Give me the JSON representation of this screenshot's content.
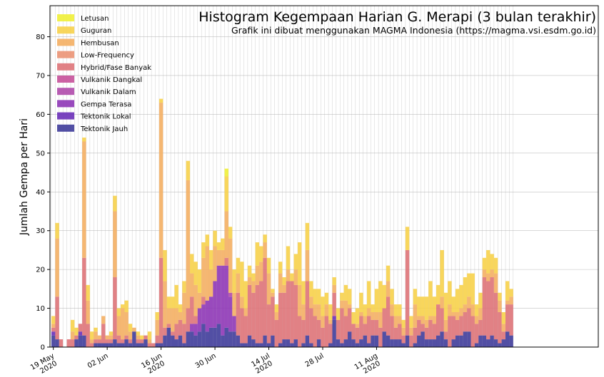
{
  "chart_data": {
    "type": "bar",
    "stacked": true,
    "title": "Histogram Kegempaan Harian G. Merapi (3 bulan terakhir)",
    "subtitle": "Grafik ini dibuat menggunakan MAGMA Indonesia (https://magma.vsi.esdm.go.id)",
    "xlabel": "",
    "ylabel": "Jumlah Gempa per Hari",
    "ylim": [
      0,
      88
    ],
    "yticks": [
      0,
      10,
      20,
      30,
      40,
      50,
      60,
      70,
      80
    ],
    "start_date": "2020-05-19",
    "xticks": [
      {
        "date": "2020-05-19",
        "line1": "19 May",
        "line2": "2020"
      },
      {
        "date": "2020-06-02",
        "line1": "02 Jun",
        "line2": ""
      },
      {
        "date": "2020-06-16",
        "line1": "16 Jun",
        "line2": "2020"
      },
      {
        "date": "2020-06-30",
        "line1": "30 Jun",
        "line2": ""
      },
      {
        "date": "2020-07-14",
        "line1": "14 Jul",
        "line2": "2020"
      },
      {
        "date": "2020-07-28",
        "line1": "28 Jul",
        "line2": ""
      },
      {
        "date": "2020-08-11",
        "line1": "11 Aug",
        "line2": "2020"
      }
    ],
    "grid": true,
    "legend_position": "top-left",
    "series": [
      {
        "name": "Tektonik Jauh",
        "color": "#3f3c9a",
        "values": [
          3,
          2,
          0,
          0,
          0,
          0,
          2,
          3,
          3,
          0,
          0,
          1,
          1,
          1,
          1,
          1,
          2,
          1,
          1,
          2,
          1,
          4,
          1,
          1,
          2,
          0,
          0,
          1,
          1,
          3,
          5,
          3,
          2,
          3,
          1,
          4,
          4,
          3,
          4,
          6,
          4,
          5,
          5,
          6,
          3,
          5,
          4,
          4,
          3,
          1,
          1,
          3,
          2,
          1,
          1,
          3,
          1,
          3,
          0,
          1,
          2,
          2,
          1,
          2,
          0,
          1,
          3,
          1,
          0,
          2,
          0,
          0,
          1,
          7,
          2,
          1,
          2,
          4,
          2,
          1,
          2,
          3,
          1,
          3,
          3,
          0,
          4,
          3,
          2,
          2,
          2,
          1,
          3,
          0,
          1,
          3,
          4,
          2,
          2,
          2,
          3,
          4,
          2,
          0,
          2,
          3,
          3,
          4,
          4,
          0,
          1,
          3,
          3,
          2,
          3,
          2,
          1,
          2,
          4,
          3
        ]
      },
      {
        "name": "Tektonik Lokal",
        "color": "#6a2fb8",
        "values": [
          1,
          0,
          0,
          0,
          0,
          0,
          0,
          1,
          0,
          0,
          0,
          0,
          0,
          0,
          0,
          0,
          0,
          0,
          0,
          0,
          0,
          0,
          0,
          0,
          0,
          0,
          0,
          0,
          0,
          0,
          0,
          0,
          0,
          0,
          0,
          0,
          0,
          0,
          0,
          0,
          0,
          0,
          0,
          0,
          0,
          0,
          0,
          0,
          0,
          0,
          0,
          0,
          0,
          0,
          0,
          0,
          0,
          0,
          0,
          0,
          0,
          0,
          0,
          0,
          0,
          0,
          0,
          0,
          0,
          0,
          0,
          0,
          0,
          1,
          0,
          0,
          0,
          0,
          0,
          0,
          0,
          0,
          0,
          0,
          0,
          0,
          0,
          0,
          0,
          0,
          0,
          0,
          0,
          0,
          0,
          0,
          0,
          0,
          0,
          0,
          0,
          0,
          0,
          0,
          0,
          0,
          0,
          0,
          0,
          0,
          0,
          0,
          0,
          0,
          0,
          0,
          0,
          0,
          0,
          0
        ]
      },
      {
        "name": "Gempa Terasa",
        "color": "#8e36b6",
        "values": [
          0,
          0,
          0,
          0,
          0,
          0,
          0,
          0,
          0,
          0,
          0,
          0,
          0,
          0,
          0,
          0,
          0,
          0,
          0,
          0,
          0,
          0,
          0,
          0,
          0,
          0,
          0,
          0,
          0,
          0,
          0,
          0,
          0,
          0,
          0,
          0,
          2,
          3,
          6,
          5,
          8,
          8,
          12,
          15,
          18,
          16,
          9,
          4,
          0,
          0,
          0,
          0,
          0,
          0,
          0,
          0,
          0,
          0,
          0,
          0,
          0,
          0,
          0,
          0,
          0,
          0,
          0,
          0,
          0,
          0,
          0,
          0,
          0,
          0,
          0,
          0,
          0,
          0,
          0,
          0,
          0,
          0,
          0,
          0,
          0,
          0,
          0,
          0,
          0,
          0,
          0,
          0,
          0,
          0,
          0,
          0,
          0,
          0,
          0,
          0,
          0,
          0,
          0,
          0,
          0,
          0,
          0,
          0,
          0,
          0,
          0,
          0,
          0,
          0,
          0,
          0,
          0,
          0,
          0,
          0
        ]
      },
      {
        "name": "Vulkanik Dalam",
        "color": "#b04aab",
        "values": [
          0,
          0,
          0,
          0,
          0,
          0,
          0,
          0,
          0,
          0,
          0,
          0,
          0,
          0,
          0,
          0,
          0,
          0,
          0,
          0,
          0,
          0,
          0,
          0,
          0,
          0,
          0,
          0,
          0,
          0,
          0,
          0,
          0,
          0,
          0,
          0,
          0,
          0,
          0,
          0,
          0,
          0,
          0,
          0,
          0,
          0,
          1,
          0,
          0,
          0,
          0,
          0,
          0,
          0,
          0,
          0,
          0,
          0,
          0,
          0,
          0,
          0,
          0,
          0,
          0,
          0,
          0,
          0,
          0,
          0,
          0,
          0,
          0,
          0,
          0,
          0,
          0,
          0,
          0,
          0,
          0,
          0,
          0,
          0,
          0,
          0,
          0,
          0,
          0,
          0,
          0,
          0,
          0,
          0,
          0,
          0,
          0,
          0,
          0,
          0,
          0,
          0,
          0,
          0,
          0,
          0,
          0,
          0,
          0,
          0,
          0,
          0,
          0,
          0,
          0,
          0,
          0,
          0,
          0,
          0
        ]
      },
      {
        "name": "Vulkanik Dangkal",
        "color": "#c6519a",
        "values": [
          0,
          0,
          0,
          0,
          0,
          0,
          0,
          0,
          0,
          0,
          0,
          0,
          0,
          0,
          0,
          0,
          0,
          0,
          0,
          0,
          0,
          0,
          0,
          0,
          0,
          0,
          0,
          0,
          0,
          0,
          0,
          0,
          0,
          0,
          0,
          0,
          0,
          0,
          0,
          0,
          0,
          0,
          0,
          0,
          0,
          0,
          0,
          0,
          0,
          0,
          0,
          0,
          0,
          0,
          0,
          0,
          0,
          0,
          0,
          0,
          0,
          0,
          0,
          0,
          0,
          0,
          0,
          0,
          0,
          0,
          0,
          0,
          0,
          0,
          0,
          0,
          0,
          0,
          0,
          0,
          0,
          0,
          0,
          0,
          0,
          0,
          0,
          0,
          0,
          0,
          0,
          0,
          0,
          0,
          0,
          0,
          0,
          0,
          0,
          0,
          0,
          0,
          0,
          0,
          0,
          0,
          0,
          0,
          0,
          0,
          0,
          0,
          0,
          0,
          0,
          0,
          0,
          0,
          0,
          0
        ]
      },
      {
        "name": "Hybrid/Fase Banyak",
        "color": "#de7378",
        "values": [
          1,
          11,
          2,
          0,
          2,
          2,
          1,
          2,
          20,
          6,
          1,
          1,
          1,
          5,
          1,
          1,
          16,
          2,
          1,
          1,
          1,
          0,
          1,
          1,
          1,
          1,
          1,
          2,
          22,
          2,
          1,
          1,
          4,
          4,
          5,
          6,
          7,
          2,
          0,
          2,
          0,
          0,
          0,
          0,
          0,
          2,
          0,
          0,
          11,
          9,
          7,
          13,
          12,
          15,
          16,
          20,
          10,
          10,
          7,
          13,
          12,
          15,
          16,
          14,
          8,
          6,
          14,
          9,
          8,
          5,
          5,
          8,
          5,
          6,
          5,
          9,
          6,
          6,
          4,
          4,
          6,
          3,
          7,
          4,
          4,
          5,
          6,
          10,
          6,
          3,
          4,
          2,
          22,
          3,
          4,
          4,
          2,
          3,
          5,
          4,
          8,
          6,
          2,
          8,
          6,
          4,
          5,
          5,
          6,
          8,
          5,
          4,
          15,
          15,
          15,
          12,
          8,
          2,
          7,
          8
        ]
      },
      {
        "name": "Low-Frequency",
        "color": "#eb9374",
        "values": [
          0,
          0,
          0,
          0,
          0,
          0,
          0,
          0,
          0,
          0,
          0,
          0,
          0,
          0,
          0,
          0,
          0,
          0,
          0,
          0,
          0,
          0,
          0,
          0,
          0,
          0,
          0,
          0,
          0,
          0,
          0,
          0,
          0,
          0,
          0,
          0,
          0,
          0,
          0,
          0,
          0,
          0,
          0,
          0,
          0,
          0,
          0,
          0,
          0,
          0,
          0,
          0,
          0,
          0,
          0,
          0,
          0,
          0,
          0,
          0,
          0,
          0,
          0,
          0,
          0,
          0,
          0,
          0,
          0,
          0,
          0,
          0,
          0,
          0,
          0,
          0,
          0,
          0,
          0,
          0,
          0,
          0,
          0,
          0,
          0,
          0,
          0,
          0,
          0,
          0,
          0,
          0,
          0,
          0,
          0,
          0,
          0,
          0,
          0,
          0,
          0,
          0,
          0,
          0,
          0,
          0,
          0,
          0,
          0,
          0,
          0,
          0,
          0,
          0,
          0,
          0,
          0,
          0,
          0,
          0
        ]
      },
      {
        "name": "Hembusan",
        "color": "#f4af63",
        "values": [
          1,
          15,
          0,
          0,
          0,
          2,
          0,
          0,
          30,
          6,
          1,
          2,
          1,
          2,
          1,
          1,
          17,
          5,
          8,
          6,
          2,
          1,
          1,
          0,
          0,
          1,
          0,
          4,
          40,
          12,
          4,
          6,
          4,
          2,
          8,
          33,
          6,
          8,
          4,
          10,
          14,
          7,
          9,
          4,
          4,
          12,
          14,
          6,
          5,
          3,
          2,
          2,
          3,
          5,
          5,
          4,
          8,
          1,
          2,
          5,
          2,
          3,
          0,
          4,
          8,
          4,
          8,
          3,
          3,
          4,
          3,
          3,
          1,
          2,
          0,
          2,
          4,
          1,
          0,
          1,
          1,
          2,
          2,
          2,
          2,
          4,
          0,
          4,
          3,
          3,
          2,
          2,
          0,
          2,
          6,
          1,
          2,
          2,
          1,
          2,
          0,
          3,
          3,
          3,
          1,
          2,
          2,
          2,
          3,
          3,
          2,
          3,
          2,
          2,
          2,
          5,
          3,
          2,
          1,
          2
        ]
      },
      {
        "name": "Guguran",
        "color": "#f7d24a",
        "values": [
          2,
          4,
          0,
          0,
          0,
          3,
          2,
          0,
          1,
          4,
          2,
          1,
          0,
          0,
          0,
          1,
          4,
          2,
          1,
          3,
          2,
          0,
          1,
          1,
          0,
          2,
          0,
          2,
          1,
          8,
          3,
          3,
          6,
          2,
          3,
          5,
          5,
          6,
          6,
          4,
          3,
          5,
          4,
          2,
          3,
          9,
          3,
          6,
          4,
          9,
          7,
          3,
          2,
          6,
          4,
          2,
          4,
          1,
          2,
          3,
          2,
          6,
          2,
          4,
          11,
          6,
          7,
          4,
          4,
          4,
          5,
          3,
          4,
          2,
          3,
          2,
          4,
          4,
          3,
          4,
          5,
          3,
          7,
          2,
          6,
          8,
          6,
          4,
          4,
          3,
          3,
          2,
          6,
          3,
          4,
          5,
          5,
          6,
          9,
          5,
          5,
          12,
          7,
          6,
          4,
          6,
          6,
          7,
          6,
          8,
          3,
          4,
          3,
          6,
          4,
          4,
          2,
          3,
          5,
          2
        ]
      },
      {
        "name": "Letusan",
        "color": "#f0f037",
        "values": [
          0,
          0,
          0,
          0,
          0,
          0,
          0,
          0,
          0,
          0,
          0,
          0,
          0,
          0,
          0,
          0,
          0,
          0,
          0,
          0,
          0,
          0,
          0,
          0,
          0,
          0,
          0,
          0,
          0,
          0,
          0,
          0,
          0,
          0,
          0,
          0,
          0,
          0,
          0,
          0,
          0,
          0,
          0,
          0,
          0,
          2,
          0,
          0,
          0,
          0,
          0,
          0,
          0,
          0,
          0,
          0,
          0,
          0,
          0,
          0,
          0,
          0,
          0,
          0,
          0,
          0,
          0,
          0,
          0,
          0,
          0,
          0,
          0,
          0,
          0,
          0,
          0,
          0,
          0,
          0,
          0,
          0,
          0,
          0,
          0,
          0,
          0,
          0,
          0,
          0,
          0,
          0,
          0,
          0,
          0,
          0,
          0,
          0,
          0,
          0,
          0,
          0,
          0,
          0,
          0,
          0,
          0,
          0,
          0,
          0,
          0,
          0,
          0,
          0,
          0,
          0
        ]
      }
    ]
  }
}
